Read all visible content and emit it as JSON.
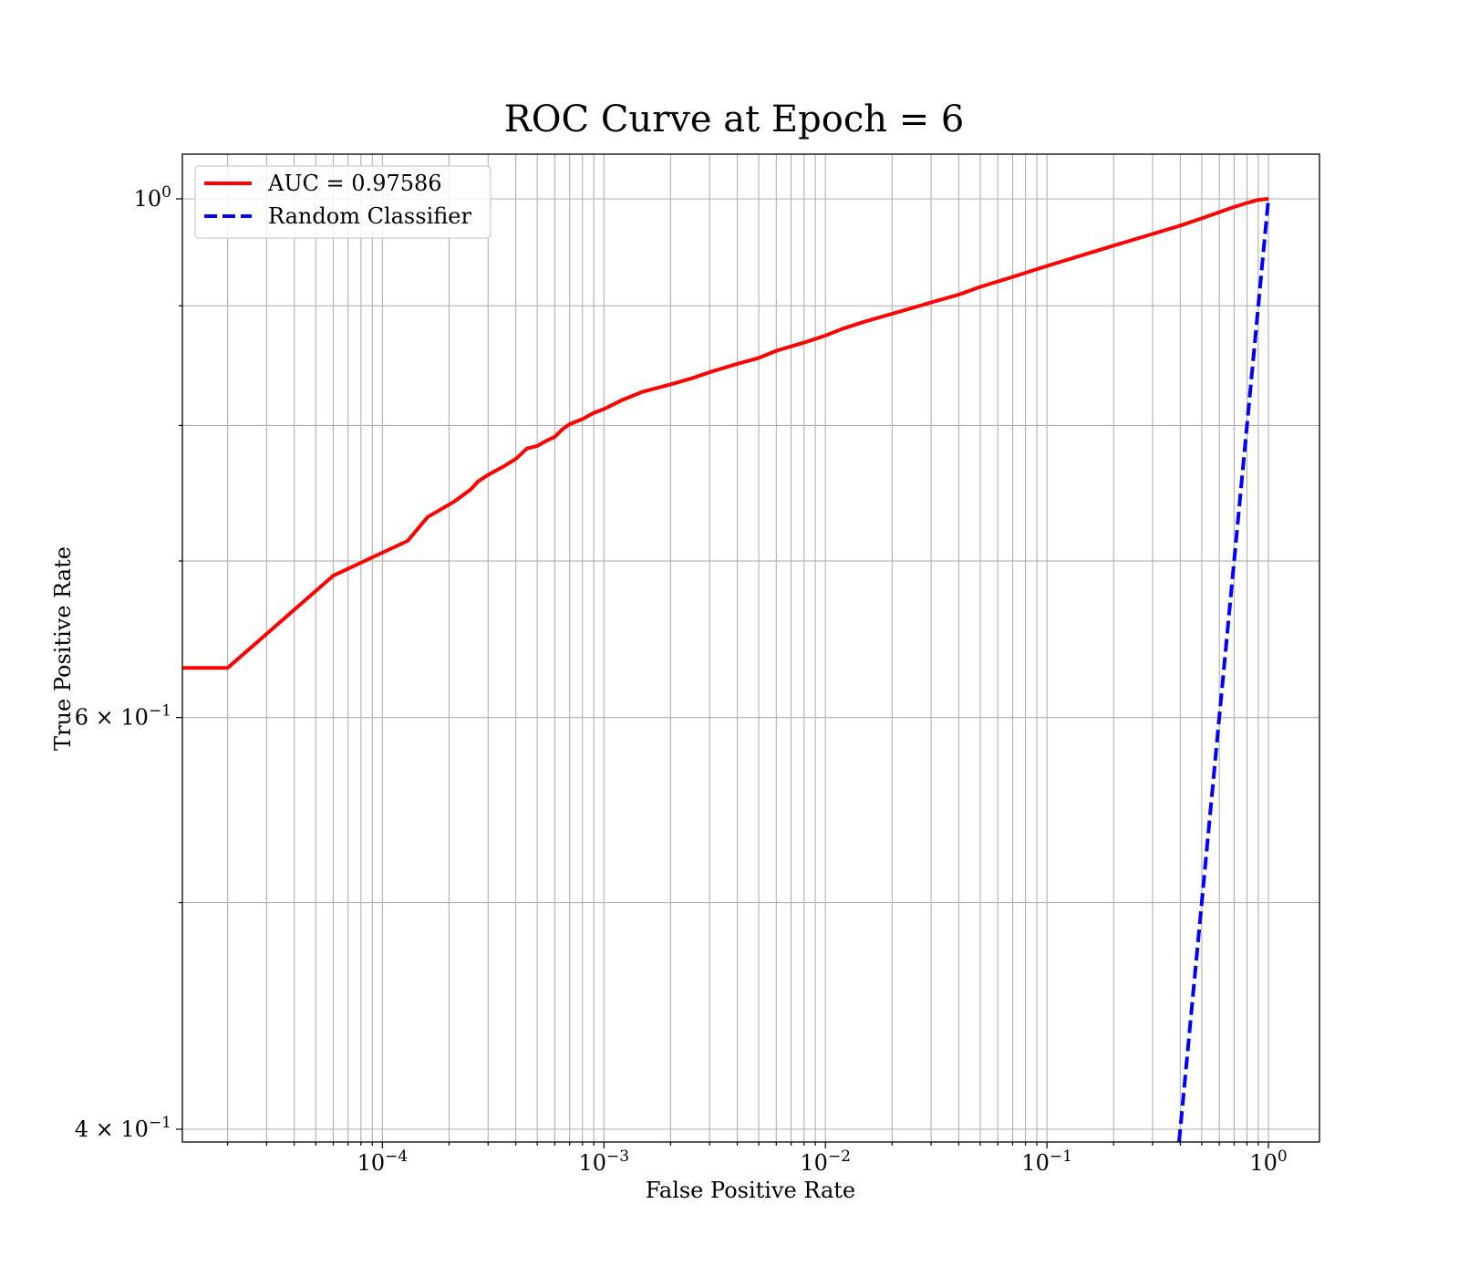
{
  "chart_data": {
    "type": "line",
    "title": "ROC Curve at Epoch = 6",
    "xlabel": "False Positive Rate",
    "ylabel": "True Positive Rate",
    "xscale": "log",
    "yscale": "log",
    "xlim": [
      1.25e-05,
      1.7
    ],
    "ylim": [
      0.395,
      1.045
    ],
    "grid": "both major and minor",
    "legend_position": "top-left",
    "x_ticks": [
      {
        "value": 0.0001,
        "base": "10",
        "exp": "−4"
      },
      {
        "value": 0.001,
        "base": "10",
        "exp": "−3"
      },
      {
        "value": 0.01,
        "base": "10",
        "exp": "−2"
      },
      {
        "value": 0.1,
        "base": "10",
        "exp": "−1"
      },
      {
        "value": 1,
        "base": "10",
        "exp": "0"
      }
    ],
    "y_ticks": [
      {
        "value": 1.0,
        "base": "10",
        "exp": "0"
      },
      {
        "value": 0.6,
        "base": "6 × 10",
        "exp": "−1"
      },
      {
        "value": 0.4,
        "base": "4 × 10",
        "exp": "−1"
      }
    ],
    "y_minor_gridlines": [
      0.5,
      0.7,
      0.8,
      0.9
    ],
    "series": [
      {
        "name": "AUC = 0.97586",
        "color": "#ff0000",
        "style": "solid",
        "x": [
          1.25e-05,
          2e-05,
          6e-05,
          0.00013,
          0.00016,
          0.00021,
          0.00025,
          0.00027,
          0.0003,
          0.00035,
          0.0004,
          0.00045,
          0.0005,
          0.00055,
          0.0006,
          0.00065,
          0.0007,
          0.0008,
          0.0009,
          0.001,
          0.0012,
          0.0015,
          0.002,
          0.0025,
          0.003,
          0.004,
          0.005,
          0.006,
          0.008,
          0.01,
          0.012,
          0.015,
          0.02,
          0.03,
          0.04,
          0.05,
          0.07,
          0.1,
          0.15,
          0.2,
          0.3,
          0.4,
          0.5,
          0.6,
          0.7,
          0.8,
          0.9,
          1.0
        ],
        "y": [
          0.63,
          0.63,
          0.69,
          0.714,
          0.731,
          0.742,
          0.751,
          0.757,
          0.762,
          0.768,
          0.774,
          0.782,
          0.784,
          0.788,
          0.791,
          0.797,
          0.801,
          0.805,
          0.81,
          0.813,
          0.82,
          0.827,
          0.833,
          0.838,
          0.843,
          0.85,
          0.855,
          0.861,
          0.868,
          0.874,
          0.88,
          0.886,
          0.893,
          0.903,
          0.91,
          0.917,
          0.926,
          0.936,
          0.947,
          0.955,
          0.966,
          0.974,
          0.981,
          0.987,
          0.992,
          0.996,
          0.999,
          1.0
        ]
      },
      {
        "name": "Random Classifier",
        "color": "#0000ff",
        "style": "dashed",
        "x": [
          0.395,
          0.5,
          0.6,
          0.7,
          0.8,
          0.9,
          1.0
        ],
        "y": [
          0.395,
          0.5,
          0.6,
          0.7,
          0.8,
          0.9,
          1.0
        ]
      }
    ]
  }
}
